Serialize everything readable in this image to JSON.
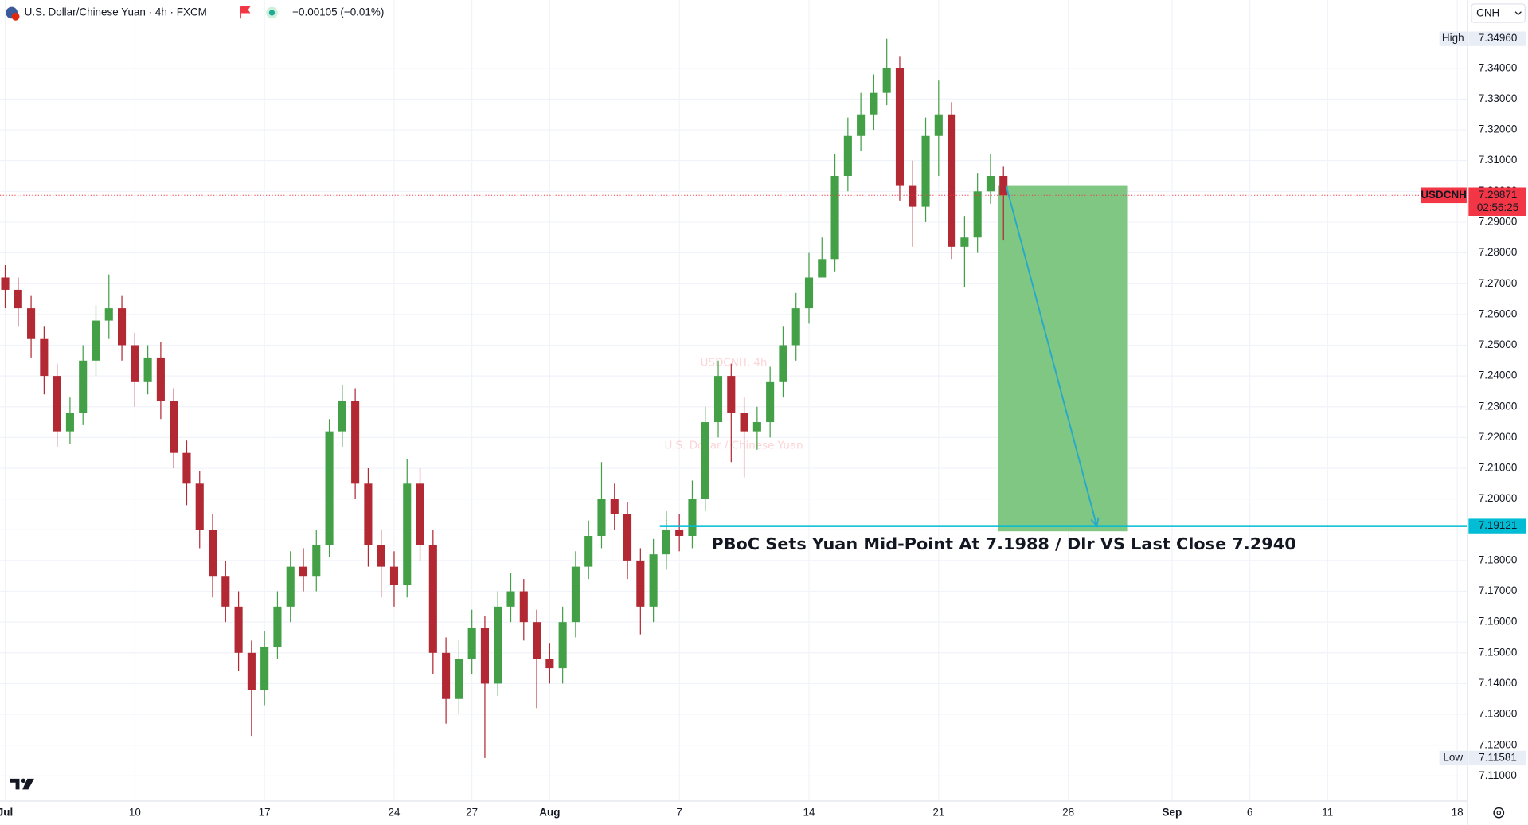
{
  "header": {
    "title": "U.S. Dollar/Chinese Yuan · 4h · FXCM",
    "change": "−0.00105 (−0.01%)",
    "currency": "CNH"
  },
  "chart_data": {
    "type": "candlestick",
    "watermark": "USDCNH, 4h",
    "watermark_subtitle": "U.S. Dollar / Chinese Yuan",
    "up_color": "#43a047",
    "down_color": "#b22833",
    "grid": true,
    "x": [
      0,
      0.5,
      1,
      1.5,
      2,
      2.5,
      3,
      3.5,
      4,
      4.5,
      5,
      5.5,
      6,
      6.5,
      7,
      7.5,
      8,
      8.5,
      9,
      9.5,
      10,
      10.5,
      11,
      11.5,
      12,
      12.5,
      13,
      13.5,
      14,
      14.5,
      15,
      15.5,
      16,
      16.5,
      17,
      17.5,
      18,
      18.5,
      19,
      19.5,
      20,
      20.5,
      21,
      21.5,
      22,
      22.5,
      23,
      23.5,
      24,
      24.5,
      25,
      25.5,
      26,
      26.5,
      27,
      27.5,
      28,
      28.5,
      29,
      29.5,
      30,
      30.5,
      31,
      31.5,
      32,
      32.5,
      33,
      33.5,
      34,
      34.5,
      35,
      35.5,
      36,
      36.5,
      37,
      37.5,
      38,
      38.5
    ],
    "open": [
      7.272,
      7.268,
      7.262,
      7.252,
      7.24,
      7.222,
      7.228,
      7.245,
      7.258,
      7.262,
      7.25,
      7.238,
      7.246,
      7.232,
      7.215,
      7.205,
      7.19,
      7.175,
      7.165,
      7.15,
      7.138,
      7.152,
      7.165,
      7.178,
      7.175,
      7.185,
      7.222,
      7.232,
      7.205,
      7.185,
      7.178,
      7.172,
      7.205,
      7.185,
      7.15,
      7.135,
      7.148,
      7.158,
      7.14,
      7.165,
      7.17,
      7.16,
      7.148,
      7.145,
      7.16,
      7.178,
      7.188,
      7.2,
      7.195,
      7.18,
      7.165,
      7.182,
      7.19,
      7.188,
      7.2,
      7.225,
      7.24,
      7.228,
      7.222,
      7.225,
      7.238,
      7.25,
      7.262,
      7.272,
      7.278,
      7.305,
      7.318,
      7.325,
      7.332,
      7.34,
      7.302,
      7.295,
      7.318,
      7.325,
      7.282,
      7.285,
      7.3,
      7.305
    ],
    "high": [
      7.276,
      7.272,
      7.266,
      7.256,
      7.244,
      7.233,
      7.25,
      7.263,
      7.273,
      7.266,
      7.254,
      7.25,
      7.251,
      7.236,
      7.219,
      7.209,
      7.195,
      7.18,
      7.17,
      7.154,
      7.157,
      7.17,
      7.183,
      7.184,
      7.19,
      7.226,
      7.237,
      7.236,
      7.21,
      7.19,
      7.183,
      7.213,
      7.21,
      7.19,
      7.155,
      7.154,
      7.164,
      7.162,
      7.17,
      7.176,
      7.174,
      7.164,
      7.153,
      7.165,
      7.183,
      7.193,
      7.212,
      7.205,
      7.199,
      7.184,
      7.187,
      7.196,
      7.195,
      7.206,
      7.23,
      7.245,
      7.244,
      7.233,
      7.23,
      7.243,
      7.256,
      7.267,
      7.28,
      7.285,
      7.312,
      7.324,
      7.332,
      7.338,
      7.3496,
      7.344,
      7.31,
      7.324,
      7.336,
      7.329,
      7.292,
      7.306,
      7.312,
      7.308
    ],
    "low": [
      7.262,
      7.256,
      7.246,
      7.234,
      7.217,
      7.218,
      7.224,
      7.24,
      7.252,
      7.245,
      7.23,
      7.234,
      7.226,
      7.21,
      7.198,
      7.184,
      7.168,
      7.16,
      7.144,
      7.123,
      7.133,
      7.148,
      7.16,
      7.17,
      7.17,
      7.181,
      7.217,
      7.2,
      7.178,
      7.168,
      7.165,
      7.168,
      7.18,
      7.143,
      7.127,
      7.13,
      7.143,
      7.11581,
      7.136,
      7.16,
      7.154,
      7.132,
      7.14,
      7.14,
      7.155,
      7.174,
      7.184,
      7.19,
      7.174,
      7.156,
      7.16,
      7.177,
      7.183,
      7.184,
      7.196,
      7.22,
      7.212,
      7.207,
      7.216,
      7.22,
      7.233,
      7.245,
      7.257,
      7.273,
      7.274,
      7.3,
      7.313,
      7.32,
      7.328,
      7.297,
      7.282,
      7.29,
      7.305,
      7.278,
      7.269,
      7.28,
      7.296,
      7.284
    ],
    "close": [
      7.268,
      7.262,
      7.252,
      7.24,
      7.222,
      7.228,
      7.245,
      7.258,
      7.262,
      7.25,
      7.238,
      7.246,
      7.232,
      7.215,
      7.205,
      7.19,
      7.175,
      7.165,
      7.15,
      7.138,
      7.152,
      7.165,
      7.178,
      7.175,
      7.185,
      7.222,
      7.232,
      7.205,
      7.185,
      7.178,
      7.172,
      7.205,
      7.185,
      7.15,
      7.135,
      7.148,
      7.158,
      7.14,
      7.165,
      7.17,
      7.16,
      7.148,
      7.145,
      7.16,
      7.178,
      7.188,
      7.2,
      7.195,
      7.18,
      7.165,
      7.182,
      7.19,
      7.188,
      7.2,
      7.225,
      7.24,
      7.228,
      7.222,
      7.225,
      7.238,
      7.25,
      7.262,
      7.272,
      7.278,
      7.305,
      7.318,
      7.325,
      7.332,
      7.34,
      7.302,
      7.295,
      7.318,
      7.325,
      7.282,
      7.285,
      7.3,
      7.305,
      7.29871
    ],
    "xlim": [
      -0.2,
      56.4
    ],
    "ylim": [
      7.1018,
      7.3622
    ],
    "xticks": [
      {
        "value": 0,
        "label": "Jul"
      },
      {
        "value": 5,
        "label": "10"
      },
      {
        "value": 10,
        "label": "17"
      },
      {
        "value": 15,
        "label": "24"
      },
      {
        "value": 18,
        "label": "27"
      },
      {
        "value": 21,
        "label": "Aug"
      },
      {
        "value": 26,
        "label": "7"
      },
      {
        "value": 31,
        "label": "14"
      },
      {
        "value": 36,
        "label": "21"
      },
      {
        "value": 41,
        "label": "28"
      },
      {
        "value": 45,
        "label": "Sep"
      },
      {
        "value": 48,
        "label": "6"
      },
      {
        "value": 51,
        "label": "11"
      },
      {
        "value": 56,
        "label": "18"
      }
    ],
    "yticks": [
      {
        "value": 7.11,
        "label": "7.11000"
      },
      {
        "value": 7.12,
        "label": "7.12000"
      },
      {
        "value": 7.13,
        "label": "7.13000"
      },
      {
        "value": 7.14,
        "label": "7.14000"
      },
      {
        "value": 7.15,
        "label": "7.15000"
      },
      {
        "value": 7.16,
        "label": "7.16000"
      },
      {
        "value": 7.17,
        "label": "7.17000"
      },
      {
        "value": 7.18,
        "label": "7.18000"
      },
      {
        "value": 7.19,
        "label": "7.19000"
      },
      {
        "value": 7.2,
        "label": "7.20000"
      },
      {
        "value": 7.21,
        "label": "7.21000"
      },
      {
        "value": 7.22,
        "label": "7.22000"
      },
      {
        "value": 7.23,
        "label": "7.23000"
      },
      {
        "value": 7.24,
        "label": "7.24000"
      },
      {
        "value": 7.25,
        "label": "7.25000"
      },
      {
        "value": 7.26,
        "label": "7.26000"
      },
      {
        "value": 7.27,
        "label": "7.27000"
      },
      {
        "value": 7.28,
        "label": "7.28000"
      },
      {
        "value": 7.29,
        "label": "7.29000"
      },
      {
        "value": 7.3,
        "label": "7.30000"
      },
      {
        "value": 7.31,
        "label": "7.31000"
      },
      {
        "value": 7.32,
        "label": "7.32000"
      },
      {
        "value": 7.33,
        "label": "7.33000"
      },
      {
        "value": 7.34,
        "label": "7.34000"
      }
    ],
    "high_marker": {
      "name": "High",
      "value": 7.3496,
      "label": "7.34960"
    },
    "low_marker": {
      "name": "Low",
      "value": 7.11581,
      "label": "7.11581"
    },
    "last_price": {
      "name": "USDCNH",
      "value": 7.29871,
      "label": "7.29871",
      "countdown": "02:56:25",
      "color": "#f23645"
    },
    "level_line": {
      "value": 7.19121,
      "label": "7.19121",
      "x_start": 25.25,
      "color": "#00bcd4"
    },
    "annotation": "PBoC Sets Yuan Mid-Point At 7.1988 / Dlr VS Last Close 7.2940",
    "target_box": {
      "x": [
        38.3,
        43.3
      ],
      "price": [
        7.302,
        7.1895
      ],
      "color": "#81c784"
    },
    "arrow": {
      "x": [
        38.6,
        42.1
      ],
      "price": [
        7.302,
        7.1912
      ],
      "color": "#29a9c9"
    }
  }
}
